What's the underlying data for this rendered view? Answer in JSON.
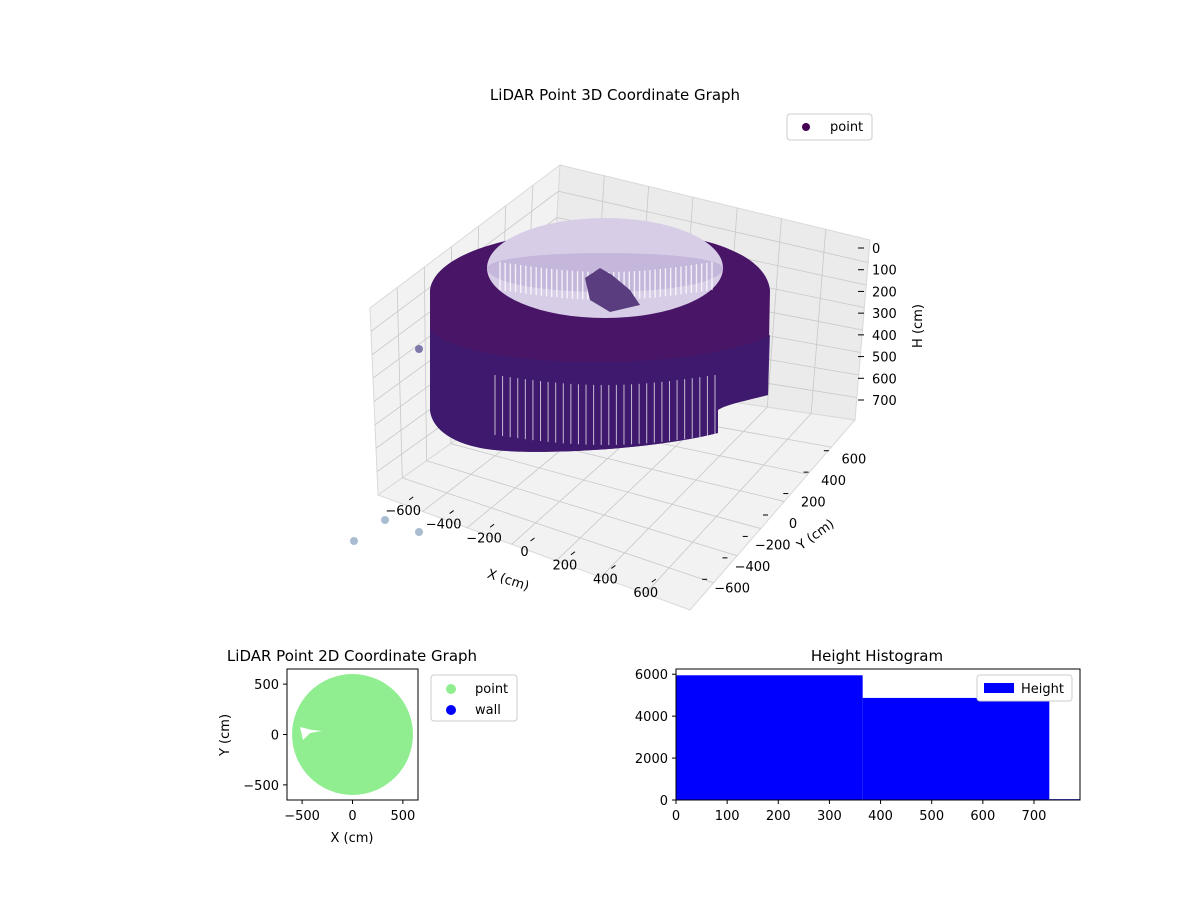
{
  "chart_data": [
    {
      "type": "scatter",
      "projection": "3d",
      "title": "LiDAR Point 3D Coordinate Graph",
      "xlabel": "X (cm)",
      "ylabel": "Y (cm)",
      "zlabel": "H (cm)",
      "x_ticks": [
        "−600",
        "−400",
        "−200",
        "0",
        "200",
        "400",
        "600"
      ],
      "y_ticks": [
        "−600",
        "−400",
        "−200",
        "0",
        "200",
        "400",
        "600"
      ],
      "z_ticks": [
        "0",
        "100",
        "200",
        "300",
        "400",
        "500",
        "600",
        "700"
      ],
      "xlim": [
        -650,
        650
      ],
      "ylim": [
        -650,
        650
      ],
      "zlim": [
        0,
        750
      ],
      "z_inverted": true,
      "legend": {
        "placement": "top-right",
        "entries": [
          {
            "label": "point",
            "color": "#440154"
          }
        ]
      },
      "shape": "ring",
      "ring": {
        "outer_radius": 600,
        "inner_radius": 470,
        "height_max": 730,
        "height_min_region": 365
      },
      "colormap": "viridis",
      "grid": true
    },
    {
      "type": "scatter",
      "title": "LiDAR Point 2D Coordinate Graph",
      "xlabel": "X (cm)",
      "ylabel": "Y (cm)",
      "x_ticks": [
        "−500",
        "0",
        "500"
      ],
      "y_ticks": [
        "500",
        "0",
        "−500"
      ],
      "xlim": [
        -650,
        650
      ],
      "ylim": [
        -650,
        650
      ],
      "series": [
        {
          "name": "point",
          "color": "#90ee90",
          "region": "disc",
          "radius": 600
        },
        {
          "name": "wall",
          "color": "#0000ff"
        }
      ],
      "legend": {
        "placement": "outside-right"
      }
    },
    {
      "type": "bar",
      "subtype": "histogram",
      "title": "Height Histogram",
      "xlabel": "",
      "ylabel": "",
      "x_ticks": [
        "0",
        "100",
        "200",
        "300",
        "400",
        "500",
        "600",
        "700"
      ],
      "y_ticks": [
        "0",
        "2000",
        "4000",
        "6000"
      ],
      "xlim": [
        0,
        790
      ],
      "ylim": [
        0,
        6250
      ],
      "bins": [
        {
          "x0": 0,
          "x1": 365,
          "count": 5950
        },
        {
          "x0": 365,
          "x1": 730,
          "count": 4870
        },
        {
          "x0": 730,
          "x1": 790,
          "count": 40
        }
      ],
      "color": "#0000ff",
      "legend": {
        "placement": "top-right",
        "entries": [
          {
            "label": "Height",
            "color": "#0000ff"
          }
        ]
      }
    }
  ]
}
